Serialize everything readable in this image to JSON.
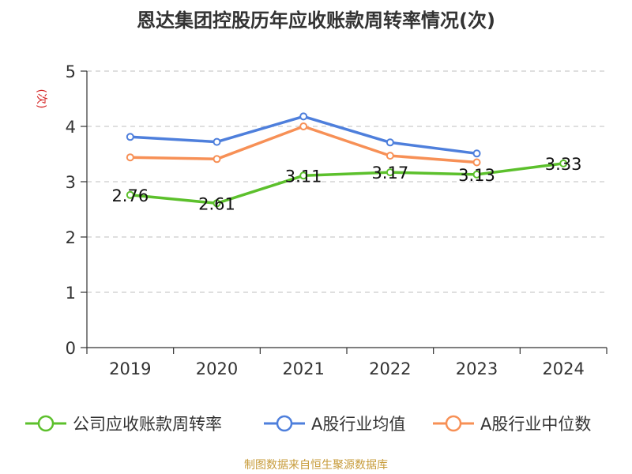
{
  "title": "恩达集团控股历年应收账款周转率情况(次)",
  "source": "制图数据来自恒生聚源数据库",
  "chart_data": {
    "type": "line",
    "title": "恩达集团控股历年应收账款周转率情况(次)",
    "ylabel": "(次)",
    "xlabel": "",
    "categories": [
      "2019",
      "2020",
      "2021",
      "2022",
      "2023",
      "2024"
    ],
    "ylim": [
      0,
      5
    ],
    "yticks": [
      0,
      1,
      2,
      3,
      4,
      5
    ],
    "grid": true,
    "legend_position": "bottom",
    "series": [
      {
        "name": "公司应收账款周转率",
        "color": "#5cc02c",
        "values": [
          2.76,
          2.61,
          3.11,
          3.17,
          3.13,
          3.33
        ],
        "data_labels": [
          "2.76",
          "2.61",
          "3.11",
          "3.17",
          "3.13",
          "3.33"
        ]
      },
      {
        "name": "A股行业均值",
        "color": "#4e7fdc",
        "values": [
          3.81,
          3.72,
          4.18,
          3.71,
          3.51,
          null
        ]
      },
      {
        "name": "A股行业中位数",
        "color": "#f79056",
        "values": [
          3.44,
          3.41,
          4.0,
          3.47,
          3.35,
          null
        ]
      }
    ]
  }
}
